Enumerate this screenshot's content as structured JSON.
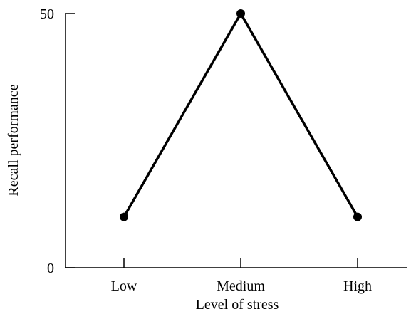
{
  "chart_data": {
    "type": "line",
    "categories": [
      "Low",
      "Medium",
      "High"
    ],
    "values": [
      10,
      50,
      10
    ],
    "xlabel": "Level of stress",
    "ylabel": "Recall performance",
    "ylim": [
      0,
      50
    ],
    "yticks": [
      0,
      50
    ],
    "ytick_labels": [
      "0",
      "50"
    ],
    "grid": false,
    "legend": "none",
    "colors": {
      "line": "#000000",
      "axis": "#000000"
    }
  }
}
